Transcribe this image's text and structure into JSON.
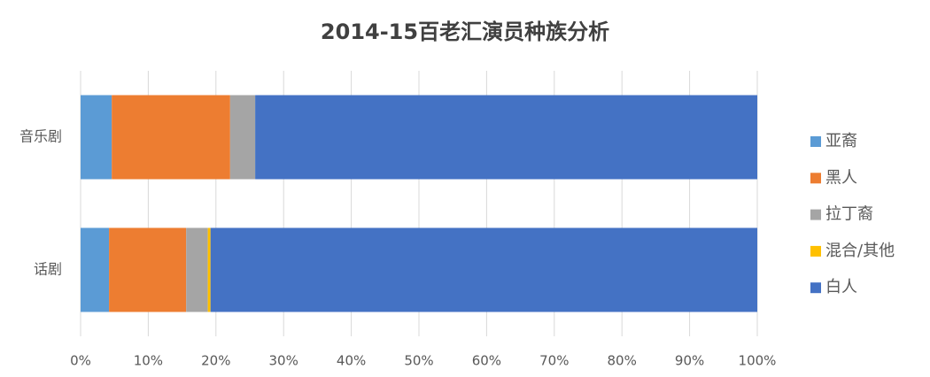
{
  "chart_data": {
    "type": "stacked-barh",
    "title": "2014-15百老汇演员种族分析",
    "categories": [
      "音乐剧",
      "话剧"
    ],
    "series": [
      {
        "name": "亚裔",
        "color": "#5b9bd5",
        "values": [
          4.6,
          4.2
        ]
      },
      {
        "name": "黑人",
        "color": "#ed7d31",
        "values": [
          17.5,
          11.4
        ]
      },
      {
        "name": "拉丁裔",
        "color": "#a5a5a5",
        "values": [
          3.7,
          3.2
        ]
      },
      {
        "name": "混合/其他",
        "color": "#ffc000",
        "values": [
          0,
          0.4
        ]
      },
      {
        "name": "白人",
        "color": "#4472c4",
        "values": [
          74.2,
          80.8
        ]
      }
    ],
    "xlim": [
      0,
      100
    ],
    "xticks": [
      {
        "value": 0,
        "label": "0%"
      },
      {
        "value": 10,
        "label": "10%"
      },
      {
        "value": 20,
        "label": "20%"
      },
      {
        "value": 30,
        "label": "30%"
      },
      {
        "value": 40,
        "label": "40%"
      },
      {
        "value": 50,
        "label": "50%"
      },
      {
        "value": 60,
        "label": "60%"
      },
      {
        "value": 70,
        "label": "70%"
      },
      {
        "value": 80,
        "label": "80%"
      },
      {
        "value": 90,
        "label": "90%"
      },
      {
        "value": 100,
        "label": "100%"
      }
    ],
    "grid": true,
    "legend": "right"
  }
}
